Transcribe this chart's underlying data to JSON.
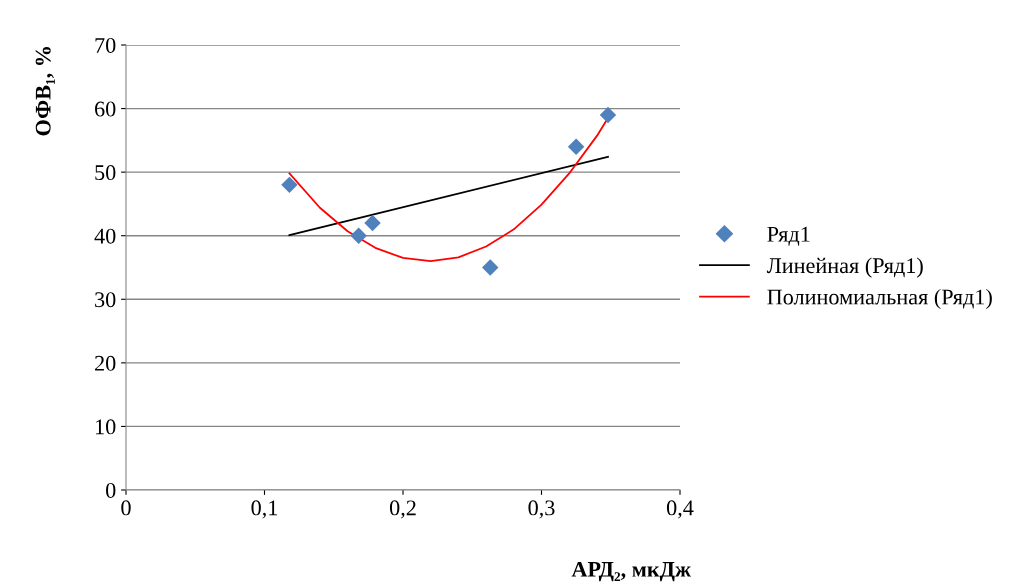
{
  "chart_data": {
    "type": "scatter",
    "xlabel": "АРД₂, мкДж",
    "ylabel": "ОФВ₁, %",
    "xlim": [
      0,
      0.4
    ],
    "xticks": [
      0,
      {
        "value": 0.1,
        "label": "0,1"
      },
      {
        "value": 0.2,
        "label": "0,2"
      },
      {
        "value": 0.3,
        "label": "0,3"
      },
      {
        "value": 0.4,
        "label": "0,4"
      }
    ],
    "ylim": [
      0,
      70
    ],
    "yticks": [
      0,
      10,
      20,
      30,
      40,
      50,
      60,
      70
    ],
    "grid": "y",
    "legend": "right",
    "marker": "diamond",
    "series": [
      {
        "name": "Ряд1",
        "color": "#4f81bd",
        "x": [
          0.118,
          0.168,
          0.178,
          0.263,
          0.325,
          0.348
        ],
        "values": [
          48,
          40,
          42,
          35,
          54,
          59
        ]
      },
      {
        "name": "Линейная (Ряд1)",
        "type": "line",
        "marker": "none",
        "color": "#000000",
        "x": [
          0.118,
          0.348
        ],
        "values": [
          40.1,
          52.4
        ]
      },
      {
        "name": "Полиномиальная (Ряд1)",
        "type": "line",
        "marker": "none",
        "color": "#ff0000",
        "x": [
          0.118,
          0.14,
          0.16,
          0.18,
          0.2,
          0.22,
          0.24,
          0.26,
          0.28,
          0.3,
          0.32,
          0.34,
          0.348
        ],
        "values": [
          49.8,
          44.4,
          40.7,
          38.1,
          36.5,
          36.0,
          36.6,
          38.3,
          41.0,
          44.9,
          49.8,
          55.7,
          58.5
        ]
      }
    ]
  }
}
